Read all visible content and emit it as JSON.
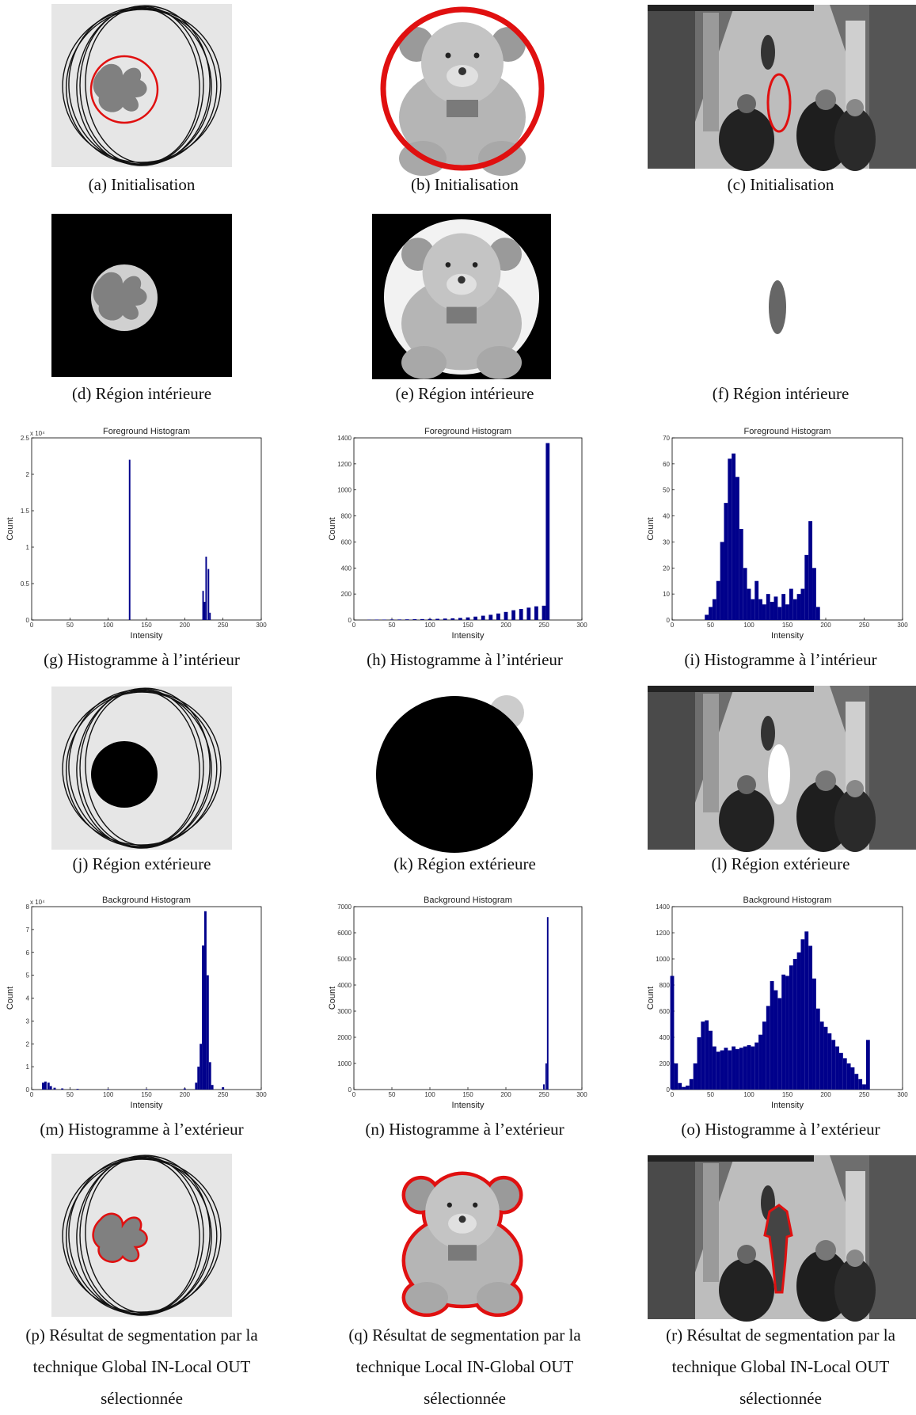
{
  "captions": [
    [
      "(a) Initialisation"
    ],
    [
      "(b) Initialisation"
    ],
    [
      "(c) Initialisation"
    ],
    [
      "(d) Région intérieure"
    ],
    [
      "(e) Région intérieure"
    ],
    [
      "(f) Région intérieure"
    ],
    [
      "(g) Histogramme à l’intérieur"
    ],
    [
      "(h) Histogramme à l’intérieur"
    ],
    [
      "(i) Histogramme à l’intérieur"
    ],
    [
      "(j) Région extérieure"
    ],
    [
      "(k) Région extérieure"
    ],
    [
      "(l) Région extérieure"
    ],
    [
      "(m) Histogramme à l’extérieur"
    ],
    [
      "(n) Histogramme à l’extérieur"
    ],
    [
      "(o) Histogramme à l’extérieur"
    ],
    [
      "(p) Résultat de segmentation par la",
      "technique Global IN-Local OUT",
      "sélectionnée"
    ],
    [
      "(q) Résultat de segmentation par la",
      "technique Local IN-Global OUT",
      "sélectionnée"
    ],
    [
      "(r) Résultat de segmentation par la",
      "technique Global IN-Local OUT",
      "sélectionnée"
    ]
  ],
  "chart_data": [
    {
      "type": "bar",
      "title": "Foreground Histogram",
      "x_label": "Intensity",
      "y_label": "Count",
      "y_multiplier": "x 10⁴",
      "color": "#00008b",
      "x": [
        128,
        224,
        226,
        228,
        231,
        233
      ],
      "values": [
        22000,
        4000,
        2500,
        8700,
        7000,
        1000
      ],
      "xlim": [
        0,
        300
      ],
      "xticks": [
        0,
        50,
        100,
        150,
        200,
        250,
        300
      ],
      "ylim": [
        0,
        25000
      ],
      "yticks": [
        0,
        {
          "value": 5000,
          "label": "0.5"
        },
        {
          "value": 10000,
          "label": "1"
        },
        {
          "value": 15000,
          "label": "1.5"
        },
        {
          "value": 20000,
          "label": "2"
        },
        {
          "value": 25000,
          "label": "2.5"
        }
      ]
    },
    {
      "type": "bar",
      "title": "Foreground Histogram",
      "x_label": "Intensity",
      "y_label": "Count",
      "color": "#00008b",
      "x": [
        20,
        30,
        40,
        50,
        60,
        70,
        80,
        90,
        100,
        110,
        120,
        130,
        140,
        150,
        160,
        170,
        180,
        190,
        200,
        210,
        220,
        230,
        240,
        250,
        255
      ],
      "values": [
        2,
        3,
        3,
        4,
        4,
        5,
        6,
        7,
        8,
        9,
        11,
        13,
        16,
        20,
        26,
        33,
        40,
        50,
        62,
        75,
        85,
        95,
        105,
        110,
        1360
      ],
      "xlim": [
        0,
        300
      ],
      "xticks": [
        0,
        50,
        100,
        150,
        200,
        250,
        300
      ],
      "ylim": [
        0,
        1400
      ],
      "yticks": [
        0,
        200,
        400,
        600,
        800,
        1000,
        1200,
        1400
      ]
    },
    {
      "type": "bar",
      "title": "Foreground Histogram",
      "x_label": "Intensity",
      "y_label": "Count",
      "color": "#00008b",
      "x": [
        45,
        50,
        55,
        60,
        65,
        70,
        75,
        80,
        85,
        90,
        95,
        100,
        105,
        110,
        115,
        120,
        125,
        130,
        135,
        140,
        145,
        150,
        155,
        160,
        165,
        170,
        175,
        180,
        185,
        190
      ],
      "values": [
        2,
        5,
        8,
        15,
        30,
        45,
        62,
        64,
        55,
        35,
        20,
        12,
        8,
        15,
        8,
        6,
        10,
        7,
        9,
        5,
        10,
        6,
        12,
        8,
        10,
        12,
        25,
        38,
        20,
        5
      ],
      "xlim": [
        0,
        300
      ],
      "xticks": [
        0,
        50,
        100,
        150,
        200,
        250,
        300
      ],
      "ylim": [
        0,
        70
      ],
      "yticks": [
        0,
        10,
        20,
        30,
        40,
        50,
        60,
        70
      ]
    },
    {
      "type": "bar",
      "title": "Background Histogram",
      "x_label": "Intensity",
      "y_label": "Count",
      "y_multiplier": "x 10⁴",
      "color": "#00008b",
      "x": [
        15,
        18,
        22,
        25,
        30,
        40,
        60,
        100,
        150,
        200,
        215,
        218,
        221,
        224,
        227,
        230,
        233,
        236,
        250
      ],
      "values": [
        3000,
        3500,
        3000,
        1500,
        800,
        500,
        300,
        200,
        200,
        500,
        3000,
        10000,
        20000,
        63000,
        78000,
        50000,
        12000,
        2000,
        1000
      ],
      "xlim": [
        0,
        300
      ],
      "xticks": [
        0,
        50,
        100,
        150,
        200,
        250,
        300
      ],
      "ylim": [
        0,
        80000
      ],
      "yticks": [
        0,
        {
          "value": 10000,
          "label": "1"
        },
        {
          "value": 20000,
          "label": "2"
        },
        {
          "value": 30000,
          "label": "3"
        },
        {
          "value": 40000,
          "label": "4"
        },
        {
          "value": 50000,
          "label": "5"
        },
        {
          "value": 60000,
          "label": "6"
        },
        {
          "value": 70000,
          "label": "7"
        },
        {
          "value": 80000,
          "label": "8"
        }
      ]
    },
    {
      "type": "bar",
      "title": "Background Histogram",
      "x_label": "Intensity",
      "y_label": "Count",
      "color": "#00008b",
      "x": [
        250,
        253,
        255
      ],
      "values": [
        200,
        1000,
        6600
      ],
      "xlim": [
        0,
        300
      ],
      "xticks": [
        0,
        50,
        100,
        150,
        200,
        250,
        300
      ],
      "ylim": [
        0,
        7000
      ],
      "yticks": [
        0,
        1000,
        2000,
        3000,
        4000,
        5000,
        6000,
        7000
      ]
    },
    {
      "type": "bar",
      "title": "Background Histogram",
      "x_label": "Intensity",
      "y_label": "Count",
      "color": "#00008b",
      "x": [
        0,
        5,
        10,
        15,
        20,
        25,
        30,
        35,
        40,
        45,
        50,
        55,
        60,
        65,
        70,
        75,
        80,
        85,
        90,
        95,
        100,
        105,
        110,
        115,
        120,
        125,
        130,
        135,
        140,
        145,
        150,
        155,
        160,
        165,
        170,
        175,
        180,
        185,
        190,
        195,
        200,
        205,
        210,
        215,
        220,
        225,
        230,
        235,
        240,
        245,
        250,
        255
      ],
      "values": [
        870,
        200,
        50,
        20,
        30,
        80,
        200,
        400,
        520,
        530,
        450,
        330,
        290,
        300,
        320,
        300,
        330,
        310,
        320,
        330,
        340,
        330,
        360,
        420,
        520,
        640,
        830,
        760,
        700,
        880,
        870,
        950,
        1000,
        1050,
        1150,
        1210,
        1100,
        850,
        620,
        520,
        480,
        430,
        380,
        330,
        280,
        240,
        200,
        170,
        120,
        80,
        40,
        380
      ],
      "xlim": [
        0,
        300
      ],
      "xticks": [
        0,
        50,
        100,
        150,
        200,
        250,
        300
      ],
      "ylim": [
        0,
        1400
      ],
      "yticks": [
        0,
        200,
        400,
        600,
        800,
        1000,
        1200,
        1400
      ]
    }
  ]
}
